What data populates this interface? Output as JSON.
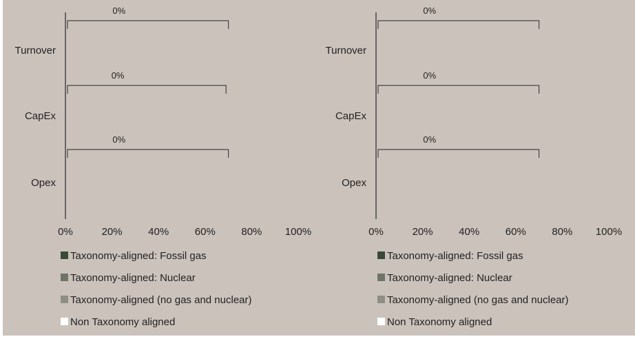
{
  "colors": {
    "background": "#cbc2bc",
    "axis": "#333333",
    "bracket": "#444444",
    "fossil_gas": "#3b4a38",
    "nuclear": "#6f7566",
    "taxonomy_aligned": "#8e8f84",
    "non_taxonomy": "#ffffff"
  },
  "chart_data": [
    {
      "type": "bar",
      "orientation": "horizontal",
      "stacked": true,
      "categories": [
        "Turnover",
        "CapEx",
        "Opex"
      ],
      "bracket_labels": [
        "0%",
        "0%",
        "0%"
      ],
      "x_ticks": [
        "0%",
        "20%",
        "40%",
        "60%",
        "80%",
        "100%"
      ],
      "xlim": [
        0,
        100
      ],
      "bracket_spans": [
        [
          0,
          70
        ],
        [
          0,
          69
        ],
        [
          0,
          70
        ]
      ],
      "series": [
        {
          "name": "Taxonomy-aligned: Fossil gas",
          "values": [
            0,
            0,
            0
          ],
          "color": "#3b4a38"
        },
        {
          "name": "Taxonomy-aligned: Nuclear",
          "values": [
            0,
            0,
            0
          ],
          "color": "#6f7566"
        },
        {
          "name": "Taxonomy-aligned (no gas and nuclear)",
          "values": [
            0,
            0,
            0
          ],
          "color": "#8e8f84"
        },
        {
          "name": "Non Taxonomy aligned",
          "values": [
            0,
            0,
            0
          ],
          "color": "#ffffff"
        }
      ],
      "legend": "bottom"
    },
    {
      "type": "bar",
      "orientation": "horizontal",
      "stacked": true,
      "categories": [
        "Turnover",
        "CapEx",
        "Opex"
      ],
      "bracket_labels": [
        "0%",
        "0%",
        "0%"
      ],
      "x_ticks": [
        "0%",
        "20%",
        "40%",
        "60%",
        "80%",
        "100%"
      ],
      "xlim": [
        0,
        100
      ],
      "bracket_spans": [
        [
          0,
          70
        ],
        [
          0,
          70
        ],
        [
          0,
          70
        ]
      ],
      "series": [
        {
          "name": "Taxonomy-aligned: Fossil gas",
          "values": [
            0,
            0,
            0
          ],
          "color": "#3b4a38"
        },
        {
          "name": "Taxonomy-aligned: Nuclear",
          "values": [
            0,
            0,
            0
          ],
          "color": "#6f7566"
        },
        {
          "name": "Taxonomy-aligned (no gas and nuclear)",
          "values": [
            0,
            0,
            0
          ],
          "color": "#8e8f84"
        },
        {
          "name": "Non Taxonomy aligned",
          "values": [
            0,
            0,
            0
          ],
          "color": "#ffffff"
        }
      ],
      "legend": "bottom"
    }
  ]
}
